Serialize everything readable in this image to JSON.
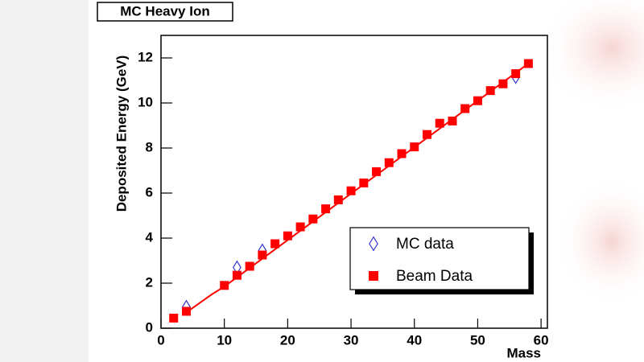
{
  "chart_data": {
    "type": "scatter",
    "title": "MC Heavy Ion",
    "x_label": "Mass",
    "y_label": "Deposited Energy (GeV)",
    "xlim": [
      0,
      61
    ],
    "ylim": [
      0,
      13
    ],
    "xticks": [
      0,
      10,
      20,
      30,
      40,
      50,
      60
    ],
    "yticks": [
      0,
      2,
      4,
      6,
      8,
      10,
      12
    ],
    "legend": "lower right",
    "series": [
      {
        "name": "MC data",
        "color": "#3333cc",
        "marker": "open-diamond",
        "x": [
          4,
          12,
          16,
          56
        ],
        "values": [
          0.95,
          2.7,
          3.45,
          11.15
        ]
      },
      {
        "name": "Beam Data",
        "color": "#ff0000",
        "marker": "square",
        "x": [
          2,
          4,
          10,
          12,
          14,
          16,
          18,
          20,
          22,
          24,
          26,
          28,
          30,
          32,
          34,
          36,
          38,
          40,
          42,
          44,
          46,
          48,
          50,
          52,
          54,
          56,
          58
        ],
        "values": [
          0.45,
          0.75,
          1.9,
          2.35,
          2.75,
          3.25,
          3.75,
          4.1,
          4.5,
          4.85,
          5.3,
          5.7,
          6.1,
          6.45,
          6.95,
          7.35,
          7.75,
          8.05,
          8.6,
          9.1,
          9.2,
          9.75,
          10.1,
          10.55,
          10.85,
          11.3,
          11.75
        ]
      }
    ],
    "fit": {
      "color": "#ff0000",
      "x": [
        4,
        6,
        8,
        10,
        58
      ],
      "values": [
        0.7,
        1.1,
        1.5,
        1.85,
        11.75
      ]
    }
  }
}
